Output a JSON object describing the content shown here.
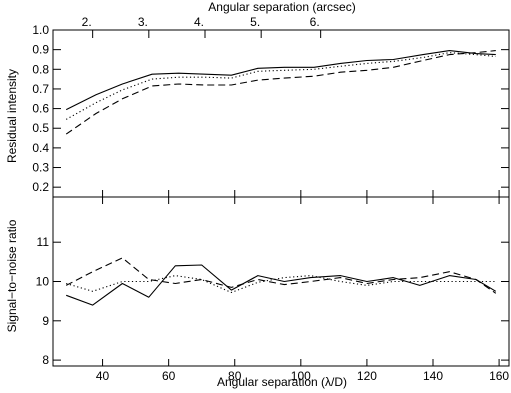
{
  "chart_data": [
    {
      "type": "line",
      "panel": "top",
      "title": "",
      "xlabel": "",
      "ylabel": "Residual intensity",
      "top_axis_label": "Angular separation (arcsec)",
      "top_axis_ticks": [
        "2.",
        "3.",
        "4.",
        "5.",
        "6."
      ],
      "top_axis_tick_positions_lambda_d": [
        37,
        54,
        71,
        88,
        106
      ],
      "xlim": [
        25,
        163
      ],
      "ylim": [
        0.15,
        1.0
      ],
      "y_ticks": [
        0.2,
        0.3,
        0.4,
        0.5,
        0.6,
        0.7,
        0.8,
        0.9,
        1.0
      ],
      "y_tick_labels": [
        "0.2",
        "0.3",
        "0.4",
        "0.5",
        "0.6",
        "0.7",
        "0.8",
        "0.9",
        "1.0"
      ],
      "series": [
        {
          "style": "solid",
          "x": [
            29,
            38,
            46,
            55,
            63,
            71,
            79,
            87,
            95,
            104,
            112,
            120,
            128,
            137,
            145,
            153,
            159
          ],
          "y": [
            0.595,
            0.67,
            0.725,
            0.775,
            0.78,
            0.775,
            0.77,
            0.805,
            0.81,
            0.81,
            0.83,
            0.845,
            0.85,
            0.875,
            0.895,
            0.88,
            0.875
          ]
        },
        {
          "style": "dotted",
          "x": [
            29,
            38,
            46,
            55,
            63,
            71,
            79,
            87,
            95,
            104,
            112,
            120,
            128,
            137,
            145,
            153,
            159
          ],
          "y": [
            0.545,
            0.63,
            0.695,
            0.75,
            0.76,
            0.76,
            0.755,
            0.79,
            0.795,
            0.8,
            0.815,
            0.83,
            0.84,
            0.86,
            0.885,
            0.875,
            0.865
          ]
        },
        {
          "style": "dashed",
          "x": [
            29,
            38,
            46,
            55,
            63,
            71,
            79,
            87,
            95,
            104,
            112,
            120,
            128,
            137,
            145,
            153,
            159
          ],
          "y": [
            0.47,
            0.575,
            0.65,
            0.715,
            0.725,
            0.72,
            0.72,
            0.745,
            0.755,
            0.765,
            0.785,
            0.795,
            0.81,
            0.845,
            0.875,
            0.885,
            0.895
          ]
        }
      ]
    },
    {
      "type": "line",
      "panel": "bottom",
      "title": "",
      "xlabel": "Angular separation (λ/D)",
      "ylabel": "Signal−to−noise ratio",
      "xlim": [
        25,
        163
      ],
      "ylim": [
        7.85,
        12.15
      ],
      "x_ticks": [
        40,
        60,
        80,
        100,
        120,
        140,
        160
      ],
      "x_tick_labels": [
        "40",
        "60",
        "80",
        "100",
        "120",
        "140",
        "160"
      ],
      "y_ticks": [
        8,
        9,
        10,
        11
      ],
      "y_tick_labels": [
        "8",
        "9",
        "10",
        "11"
      ],
      "series": [
        {
          "style": "solid",
          "x": [
            29,
            37,
            46,
            54,
            62,
            70,
            79,
            87,
            95,
            103,
            112,
            120,
            128,
            136,
            145,
            153,
            159
          ],
          "y": [
            9.65,
            9.4,
            9.95,
            9.6,
            10.4,
            10.42,
            9.78,
            10.15,
            10.0,
            10.1,
            10.15,
            10.0,
            10.1,
            9.9,
            10.15,
            10.05,
            9.75
          ]
        },
        {
          "style": "dotted",
          "x": [
            29,
            37,
            46,
            54,
            62,
            70,
            79,
            87,
            95,
            103,
            112,
            120,
            128,
            136,
            145,
            153,
            159
          ],
          "y": [
            9.95,
            9.75,
            10.0,
            10.0,
            10.15,
            10.05,
            9.72,
            9.98,
            10.1,
            10.15,
            10.0,
            9.9,
            10.0,
            10.0,
            10.0,
            10.0,
            10.0
          ]
        },
        {
          "style": "dashed",
          "x": [
            29,
            37,
            46,
            54,
            62,
            70,
            79,
            87,
            95,
            103,
            112,
            120,
            128,
            136,
            145,
            153,
            159
          ],
          "y": [
            9.9,
            10.25,
            10.6,
            10.05,
            9.95,
            10.05,
            9.85,
            10.05,
            9.92,
            10.0,
            10.1,
            9.95,
            10.05,
            10.1,
            10.25,
            10.05,
            9.7
          ]
        }
      ]
    }
  ]
}
